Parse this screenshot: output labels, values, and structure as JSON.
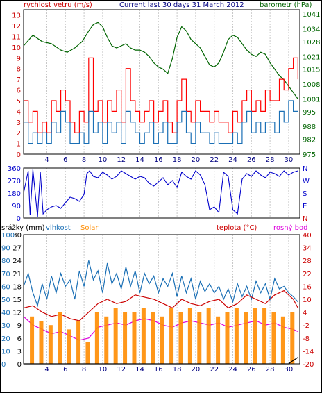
{
  "chart_data": [
    {
      "type": "line",
      "title": "Current last 30 days 31 March 2012",
      "left_axis_label": "rychlost vetru (m/s)",
      "right_axis_label": "barometr (hPa)",
      "x_ticks": [
        4,
        6,
        8,
        10,
        12,
        14,
        16,
        18,
        20,
        22,
        24,
        26,
        28,
        30
      ],
      "x_range": [
        1.5,
        31.2
      ],
      "left_ticks": [
        0,
        1,
        2,
        3,
        4,
        5,
        6,
        7,
        8,
        9,
        10,
        11,
        12,
        13
      ],
      "left_range": [
        0,
        13.5
      ],
      "right_ticks": [
        975,
        982,
        988,
        995,
        1001,
        1008,
        1015,
        1021,
        1028,
        1034,
        1041
      ],
      "right_range": [
        975,
        1043
      ],
      "grid": "vertical",
      "series": [
        {
          "name": "barometr",
          "color": "#006400",
          "axis": "right",
          "x": [
            1.5,
            2.5,
            3.5,
            4.5,
            5.5,
            6.2,
            7.0,
            7.8,
            8.5,
            9.0,
            9.5,
            10.0,
            10.5,
            11.0,
            11.5,
            12.0,
            12.5,
            13.0,
            13.5,
            14.0,
            14.5,
            15.0,
            15.5,
            16.0,
            16.5,
            17.0,
            17.5,
            18.0,
            18.5,
            19.0,
            19.5,
            20.0,
            20.5,
            21.0,
            21.5,
            22.0,
            22.5,
            23.0,
            23.5,
            24.0,
            24.5,
            25.0,
            25.5,
            26.0,
            26.5,
            27.0,
            27.5,
            28.0,
            28.5,
            29.0,
            29.5,
            30.0,
            30.5,
            31.0
          ],
          "y": [
            1026,
            1031,
            1028,
            1027,
            1024,
            1023,
            1025,
            1028,
            1033,
            1036,
            1037,
            1035,
            1030,
            1026,
            1025,
            1026,
            1027,
            1025,
            1024,
            1024,
            1023,
            1021,
            1018,
            1016,
            1015,
            1013,
            1020,
            1030,
            1035,
            1033,
            1029,
            1027,
            1025,
            1021,
            1017,
            1016,
            1018,
            1023,
            1029,
            1031,
            1030,
            1027,
            1024,
            1022,
            1021,
            1023,
            1022,
            1018,
            1015,
            1012,
            1010,
            1007,
            1004,
            1001
          ]
        },
        {
          "name": "gust",
          "color": "#ff0000",
          "axis": "left",
          "x": [
            1.5,
            2.0,
            2.5,
            3.0,
            3.5,
            4.0,
            4.5,
            5.0,
            5.5,
            6.0,
            6.5,
            7.0,
            7.5,
            8.0,
            8.5,
            9.0,
            9.5,
            10.0,
            10.5,
            11.0,
            11.5,
            12.0,
            12.5,
            13.0,
            13.5,
            14.0,
            14.5,
            15.0,
            15.5,
            16.0,
            16.5,
            17.0,
            17.5,
            18.0,
            18.5,
            19.0,
            19.5,
            20.0,
            20.5,
            21.0,
            21.5,
            22.0,
            22.5,
            23.0,
            23.5,
            24.0,
            24.5,
            25.0,
            25.5,
            26.0,
            26.5,
            27.0,
            27.5,
            28.0,
            28.5,
            29.0,
            29.5,
            30.0,
            30.5,
            31.0
          ],
          "y": [
            5,
            3,
            4,
            2,
            3,
            2,
            5,
            4,
            6,
            5,
            3,
            2,
            4,
            3,
            9,
            4,
            5,
            3,
            5,
            4,
            6,
            3,
            8,
            5,
            4,
            3,
            4,
            5,
            3,
            4,
            5,
            3,
            2,
            5,
            7,
            4,
            3,
            5,
            4,
            4,
            3,
            4,
            3,
            3,
            2,
            4,
            3,
            5,
            6,
            4,
            5,
            4,
            6,
            5,
            5,
            7,
            6,
            8,
            9,
            7
          ]
        },
        {
          "name": "wind",
          "color": "#1a6fb5",
          "axis": "left",
          "x": [
            1.5,
            2.0,
            2.5,
            3.0,
            3.5,
            4.0,
            4.5,
            5.0,
            5.5,
            6.0,
            6.5,
            7.0,
            7.5,
            8.0,
            8.5,
            9.0,
            9.5,
            10.0,
            10.5,
            11.0,
            11.5,
            12.0,
            12.5,
            13.0,
            13.5,
            14.0,
            14.5,
            15.0,
            15.5,
            16.0,
            16.5,
            17.0,
            17.5,
            18.0,
            18.5,
            19.0,
            19.5,
            20.0,
            20.5,
            21.0,
            21.5,
            22.0,
            22.5,
            23.0,
            23.5,
            24.0,
            24.5,
            25.0,
            25.5,
            26.0,
            26.5,
            27.0,
            27.5,
            28.0,
            28.5,
            29.0,
            29.5,
            30.0,
            30.5,
            31.0
          ],
          "y": [
            3,
            1,
            2,
            1,
            2,
            1,
            3,
            2,
            4,
            3,
            1,
            1,
            2,
            1,
            4,
            2,
            3,
            1,
            3,
            2,
            3,
            1,
            4,
            3,
            2,
            1,
            2,
            3,
            1,
            2,
            3,
            1,
            1,
            3,
            4,
            2,
            1,
            3,
            2,
            2,
            1,
            2,
            1,
            1,
            1,
            2,
            1,
            3,
            4,
            2,
            3,
            2,
            3,
            3,
            2,
            4,
            3,
            5,
            4,
            4
          ]
        }
      ]
    },
    {
      "type": "line",
      "title": "",
      "left_ticks": [
        0,
        90,
        180,
        270,
        360
      ],
      "left_range": [
        0,
        360
      ],
      "right_labels": [
        "N",
        "W",
        "S",
        "E",
        "N"
      ],
      "x_range": [
        1.5,
        31.2
      ],
      "grid": "vertical",
      "series": [
        {
          "name": "smer",
          "color": "#0000cc",
          "x": [
            1.5,
            2.0,
            2.2,
            2.5,
            3.0,
            3.3,
            3.6,
            4.0,
            4.5,
            5.0,
            5.5,
            6.0,
            6.5,
            7.0,
            7.5,
            8.0,
            8.3,
            8.6,
            9.0,
            9.5,
            10.0,
            10.5,
            11.0,
            11.5,
            12.0,
            12.5,
            13.0,
            13.5,
            14.0,
            14.5,
            15.0,
            15.5,
            16.0,
            16.5,
            17.0,
            17.5,
            18.0,
            18.5,
            19.0,
            19.5,
            20.0,
            20.5,
            21.0,
            21.5,
            22.0,
            22.5,
            23.0,
            23.5,
            24.0,
            24.5,
            25.0,
            25.5,
            26.0,
            26.5,
            27.0,
            27.5,
            28.0,
            28.5,
            29.0,
            29.5,
            30.0,
            30.5,
            31.0
          ],
          "y": [
            180,
            340,
            20,
            350,
            10,
            330,
            30,
            60,
            80,
            90,
            70,
            110,
            150,
            140,
            120,
            170,
            320,
            340,
            300,
            290,
            330,
            310,
            280,
            300,
            340,
            320,
            300,
            280,
            300,
            290,
            250,
            230,
            260,
            290,
            240,
            270,
            220,
            330,
            300,
            280,
            340,
            310,
            240,
            60,
            80,
            40,
            330,
            300,
            60,
            30,
            280,
            320,
            300,
            340,
            310,
            290,
            330,
            320,
            300,
            340,
            310,
            330,
            340
          ]
        }
      ]
    },
    {
      "type": "line",
      "title": "",
      "legend": [
        "srážky (mm)",
        "vlhkost",
        "Solar",
        "teplota (°C)",
        "rosný bod"
      ],
      "left_ticks_rain": [
        0,
        3,
        6,
        9,
        12,
        15,
        18,
        21,
        24,
        27,
        30
      ],
      "left_ticks_humidity": [
        0,
        10,
        20,
        30,
        40,
        50,
        60,
        70,
        80,
        90,
        100
      ],
      "left_range_rain": [
        0,
        30
      ],
      "right_ticks": [
        -20,
        -14,
        -8,
        -2,
        4,
        10,
        16,
        22,
        28,
        34,
        40
      ],
      "right_range": [
        -20,
        40
      ],
      "x_range": [
        1.5,
        31.2
      ],
      "grid": "vertical",
      "series": [
        {
          "name": "vlhkost",
          "color": "#1a6fb5",
          "axis": "humidity",
          "x": [
            1.5,
            2.0,
            2.5,
            3.0,
            3.5,
            4.0,
            4.5,
            5.0,
            5.5,
            6.0,
            6.5,
            7.0,
            7.5,
            8.0,
            8.5,
            9.0,
            9.5,
            10.0,
            10.5,
            11.0,
            11.5,
            12.0,
            12.5,
            13.0,
            13.5,
            14.0,
            14.5,
            15.0,
            15.5,
            16.0,
            16.5,
            17.0,
            17.5,
            18.0,
            18.5,
            19.0,
            19.5,
            20.0,
            20.5,
            21.0,
            21.5,
            22.0,
            22.5,
            23.0,
            23.5,
            24.0,
            24.5,
            25.0,
            25.5,
            26.0,
            26.5,
            27.0,
            27.5,
            28.0,
            28.5,
            29.0,
            29.5,
            30.0,
            30.5,
            31.0
          ],
          "y": [
            60,
            70,
            55,
            45,
            62,
            50,
            68,
            55,
            70,
            60,
            65,
            50,
            72,
            60,
            80,
            65,
            72,
            55,
            78,
            62,
            70,
            58,
            75,
            60,
            72,
            55,
            70,
            62,
            68,
            55,
            66,
            60,
            70,
            52,
            68,
            55,
            66,
            50,
            64,
            56,
            62,
            55,
            60,
            50,
            58,
            48,
            62,
            52,
            60,
            50,
            64,
            55,
            62,
            50,
            66,
            58,
            60,
            55,
            52,
            48
          ]
        },
        {
          "name": "teplota",
          "color": "#cc0000",
          "axis": "temp",
          "x": [
            1.5,
            2.5,
            3.5,
            4.5,
            5.5,
            6.5,
            7.5,
            8.5,
            9.5,
            10.5,
            11.5,
            12.5,
            13.5,
            14.5,
            15.5,
            16.5,
            17.5,
            18.5,
            19.5,
            20.5,
            21.5,
            22.5,
            23.5,
            24.5,
            25.5,
            26.5,
            27.5,
            28.5,
            29.5,
            30.5,
            31.0
          ],
          "y": [
            6,
            7,
            4,
            2,
            3,
            1,
            0,
            4,
            8,
            10,
            8,
            9,
            12,
            11,
            10,
            8,
            6,
            10,
            8,
            7,
            9,
            10,
            6,
            8,
            12,
            10,
            8,
            12,
            14,
            10,
            6
          ]
        },
        {
          "name": "rosný bod",
          "color": "#dd00dd",
          "axis": "temp",
          "x": [
            1.5,
            2.5,
            3.5,
            4.5,
            5.5,
            6.5,
            7.5,
            8.5,
            9.5,
            10.5,
            11.5,
            12.5,
            13.5,
            14.5,
            15.5,
            16.5,
            17.5,
            18.5,
            19.5,
            20.5,
            21.5,
            22.5,
            23.5,
            24.5,
            25.5,
            26.5,
            27.5,
            28.5,
            29.5,
            30.5,
            31.0
          ],
          "y": [
            2,
            -2,
            -4,
            -6,
            -5,
            -7,
            -9,
            -8,
            -3,
            -2,
            -1,
            -2,
            0,
            1,
            0,
            -2,
            -3,
            -1,
            0,
            -1,
            -2,
            -1,
            -3,
            -2,
            -1,
            0,
            -2,
            -1,
            -3,
            -4,
            -5
          ]
        },
        {
          "name": "Solar",
          "color": "#ff8c00",
          "axis": "rain",
          "x": [
            2.4,
            3.4,
            4.4,
            5.4,
            6.4,
            7.4,
            8.4,
            9.4,
            10.4,
            11.4,
            12.4,
            13.4,
            14.4,
            15.4,
            16.4,
            17.4,
            18.4,
            19.4,
            20.4,
            21.4,
            22.4,
            23.4,
            24.4,
            25.4,
            26.4,
            27.4,
            28.4,
            29.4,
            30.4
          ],
          "y": [
            11,
            10,
            9,
            12,
            8,
            10,
            5,
            12,
            11,
            13,
            12,
            12,
            13,
            12,
            11,
            13,
            12,
            13,
            12,
            13,
            11,
            12,
            13,
            12,
            13,
            13,
            12,
            11,
            12
          ]
        },
        {
          "name": "srážky",
          "color": "#000000",
          "axis": "rain",
          "x": [
            1.5,
            30.0,
            30.3,
            31.0
          ],
          "y": [
            0,
            0,
            0.5,
            1.5
          ]
        }
      ]
    }
  ]
}
